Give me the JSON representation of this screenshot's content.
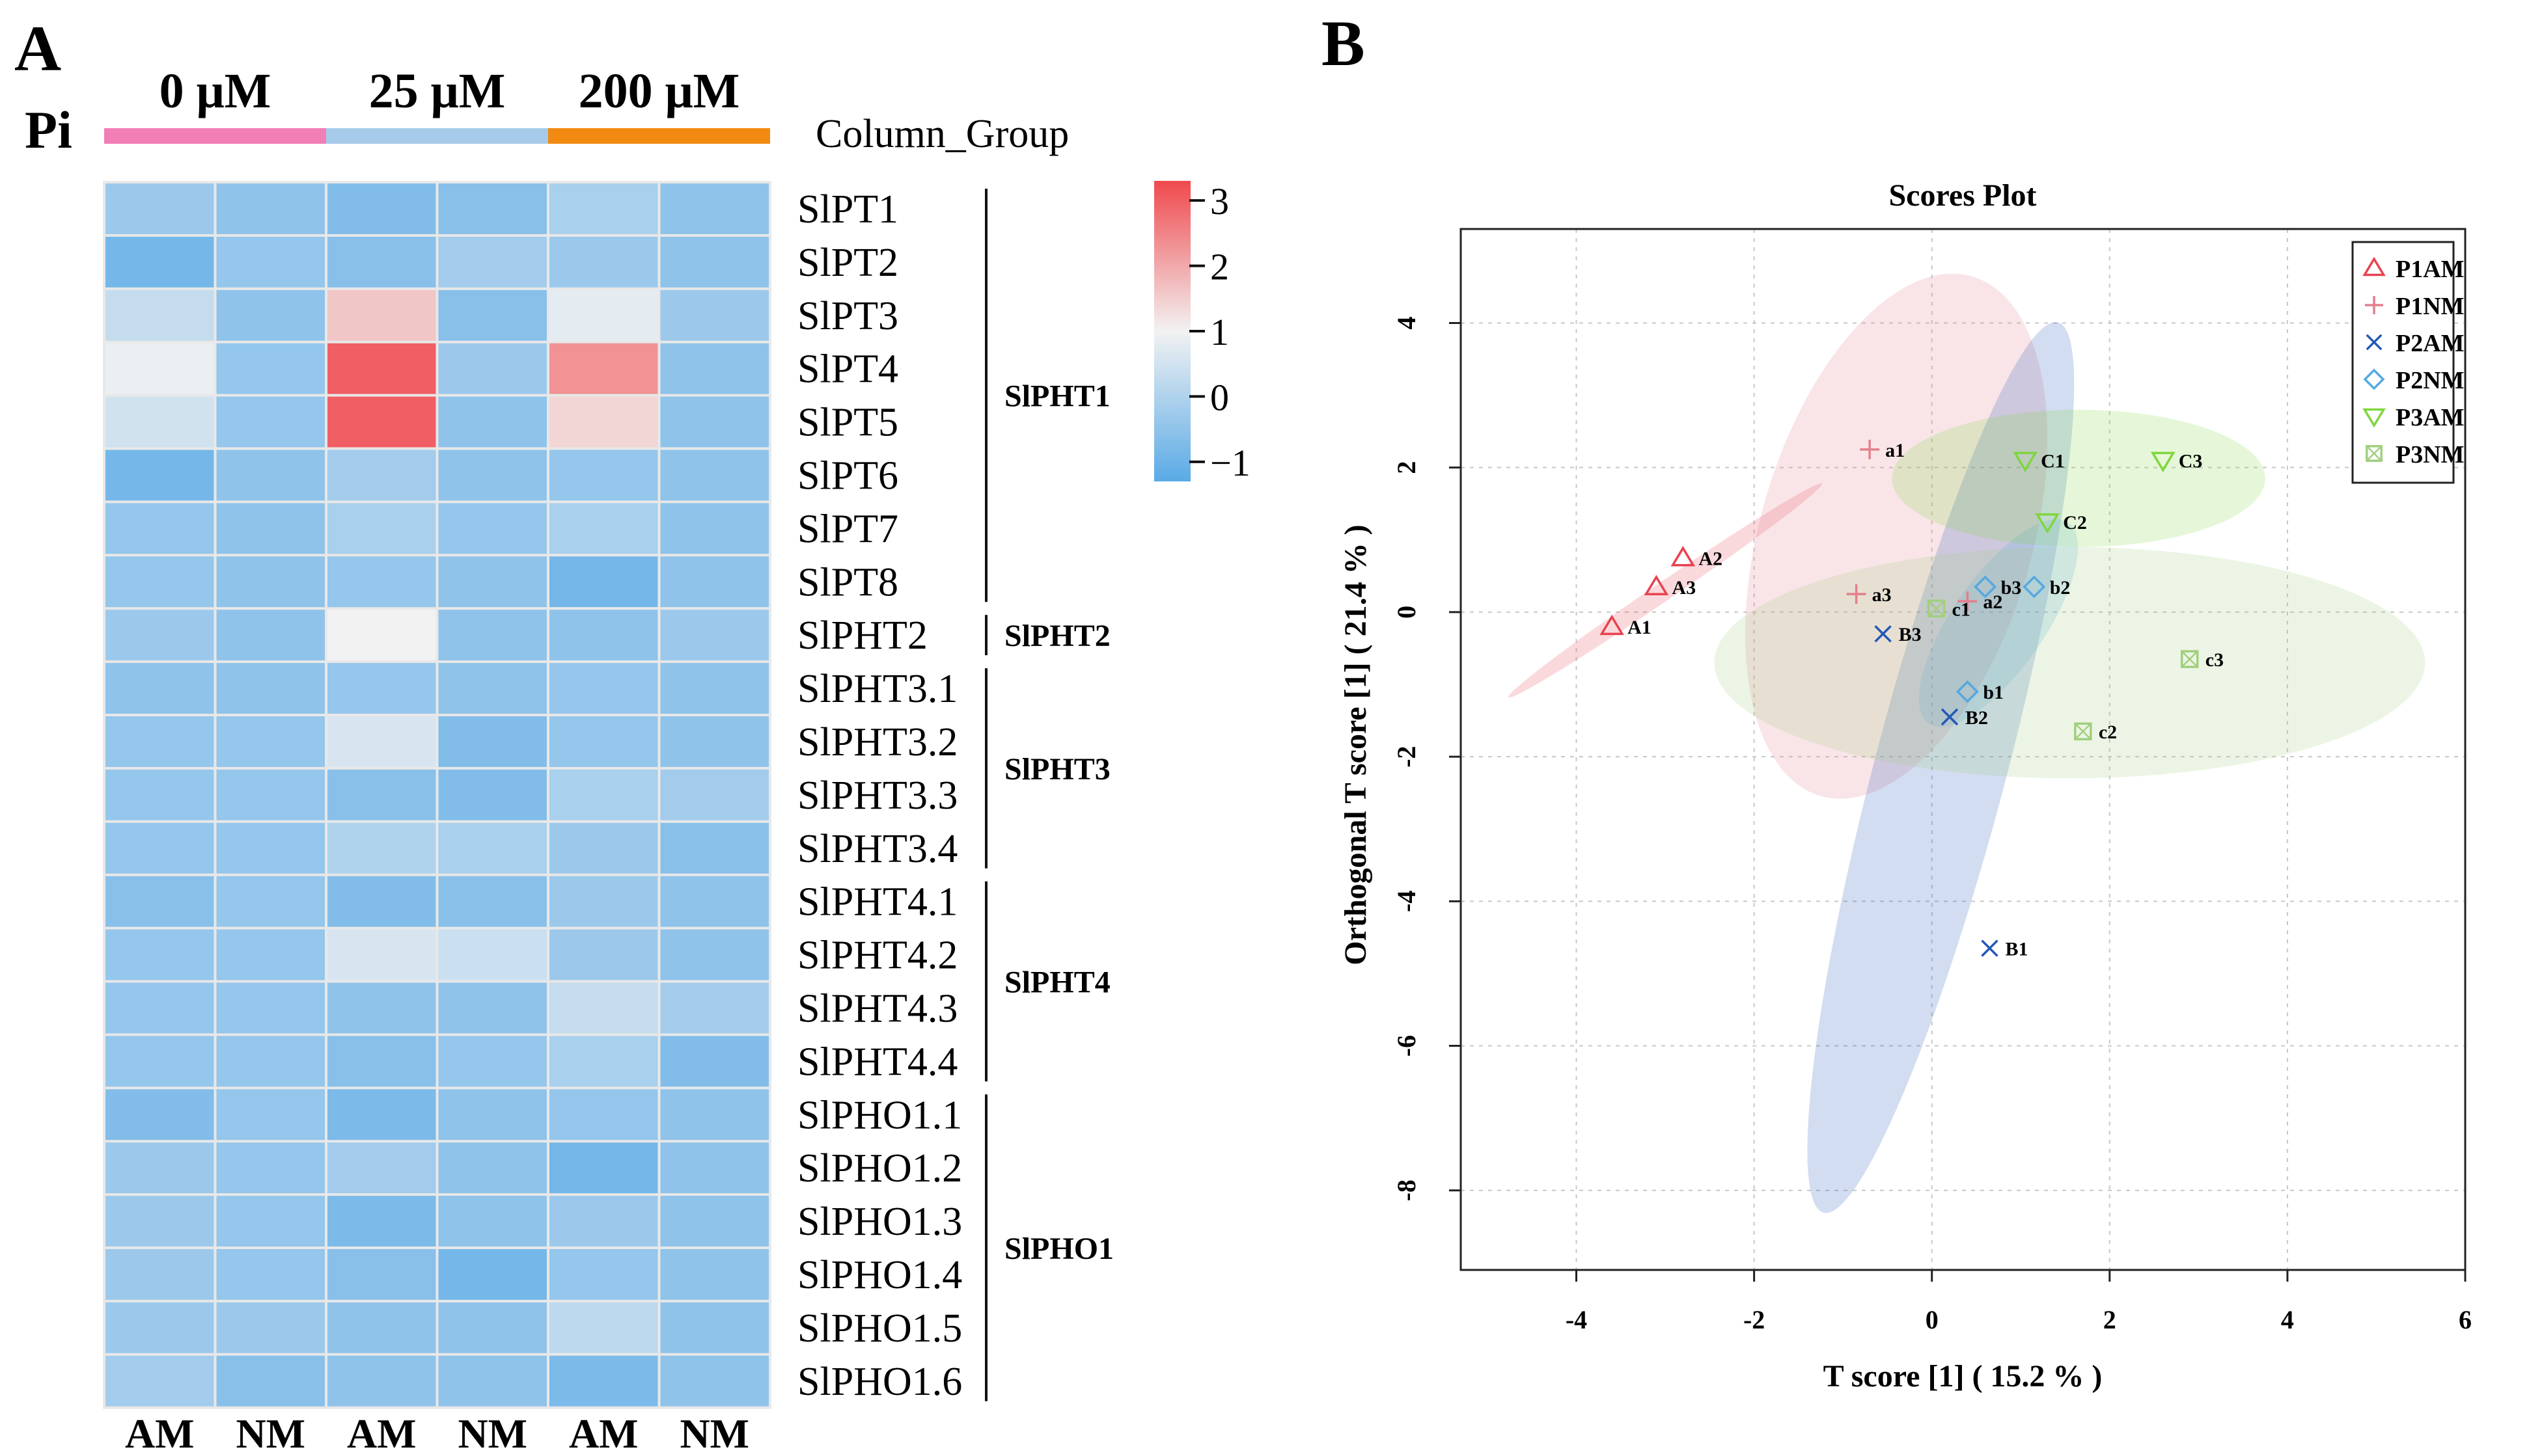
{
  "chart_data": [
    {
      "type": "heatmap",
      "panel_label": "A",
      "row_annotation_label": "Pi",
      "column_group_title": "Column_Group",
      "column_groups": [
        {
          "label": "0 μM",
          "color": "#f27eb6"
        },
        {
          "label": "25 μM",
          "color": "#a6cbea"
        },
        {
          "label": "200 μM",
          "color": "#f28a12"
        }
      ],
      "columns": [
        "AM",
        "NM",
        "AM",
        "NM",
        "AM",
        "NM"
      ],
      "rows": [
        "SlPT1",
        "SlPT2",
        "SlPT3",
        "SlPT4",
        "SlPT5",
        "SlPT6",
        "SlPT7",
        "SlPT8",
        "SlPHT2",
        "SlPHT3.1",
        "SlPHT3.2",
        "SlPHT3.3",
        "SlPHT3.4",
        "SlPHT4.1",
        "SlPHT4.2",
        "SlPHT4.3",
        "SlPHT4.4",
        "SlPHO1.1",
        "SlPHO1.2",
        "SlPHO1.3",
        "SlPHO1.4",
        "SlPHO1.5",
        "SlPHO1.6"
      ],
      "values": [
        [
          -0.3,
          -0.5,
          -0.7,
          -0.6,
          -0.1,
          -0.5
        ],
        [
          -0.9,
          -0.4,
          -0.6,
          -0.2,
          -0.3,
          -0.5
        ],
        [
          0.3,
          -0.5,
          1.6,
          -0.6,
          0.8,
          -0.3
        ],
        [
          0.9,
          -0.4,
          3.0,
          -0.3,
          2.3,
          -0.5
        ],
        [
          0.5,
          -0.4,
          3.0,
          -0.5,
          1.4,
          -0.5
        ],
        [
          -0.9,
          -0.5,
          -0.2,
          -0.5,
          -0.4,
          -0.5
        ],
        [
          -0.4,
          -0.5,
          -0.1,
          -0.4,
          -0.1,
          -0.5
        ],
        [
          -0.4,
          -0.5,
          -0.4,
          -0.5,
          -0.9,
          -0.5
        ],
        [
          -0.3,
          -0.5,
          1.0,
          -0.5,
          -0.5,
          -0.3
        ],
        [
          -0.5,
          -0.5,
          -0.4,
          -0.5,
          -0.4,
          -0.5
        ],
        [
          -0.4,
          -0.4,
          0.6,
          -0.7,
          -0.4,
          -0.5
        ],
        [
          -0.4,
          -0.4,
          -0.6,
          -0.7,
          -0.1,
          -0.2
        ],
        [
          -0.4,
          -0.4,
          0.0,
          -0.1,
          -0.3,
          -0.6
        ],
        [
          -0.6,
          -0.4,
          -0.7,
          -0.6,
          -0.3,
          -0.5
        ],
        [
          -0.4,
          -0.4,
          0.6,
          0.4,
          -0.3,
          -0.5
        ],
        [
          -0.4,
          -0.4,
          -0.5,
          -0.5,
          0.3,
          -0.2
        ],
        [
          -0.4,
          -0.4,
          -0.6,
          -0.4,
          -0.1,
          -0.7
        ],
        [
          -0.7,
          -0.4,
          -0.8,
          -0.5,
          -0.4,
          -0.5
        ],
        [
          -0.3,
          -0.4,
          -0.2,
          -0.5,
          -0.9,
          -0.5
        ],
        [
          -0.3,
          -0.4,
          -0.8,
          -0.5,
          -0.3,
          -0.5
        ],
        [
          -0.3,
          -0.4,
          -0.6,
          -0.9,
          -0.4,
          -0.5
        ],
        [
          -0.3,
          -0.3,
          -0.5,
          -0.5,
          0.2,
          -0.5
        ],
        [
          -0.2,
          -0.6,
          -0.5,
          -0.5,
          -0.8,
          -0.5
        ]
      ],
      "row_groups": [
        {
          "label": "SlPHT1",
          "start": 0,
          "end": 7
        },
        {
          "label": "SlPHT2",
          "start": 8,
          "end": 8
        },
        {
          "label": "SlPHT3",
          "start": 9,
          "end": 12
        },
        {
          "label": "SlPHT4",
          "start": 13,
          "end": 16
        },
        {
          "label": "SlPHO1",
          "start": 17,
          "end": 22
        }
      ],
      "color_scale": {
        "range": [
          -1.3,
          3.3
        ],
        "ticks": [
          3,
          2,
          1,
          0,
          -1
        ],
        "tick_labels": [
          "3",
          "2",
          "1",
          "0",
          "−1"
        ],
        "stops": [
          {
            "value": -1.3,
            "color": "#5aaae6"
          },
          {
            "value": 1.0,
            "color": "#f2f2f2"
          },
          {
            "value": 3.3,
            "color": "#f0494d"
          }
        ]
      }
    },
    {
      "type": "scatter",
      "panel_label": "B",
      "title": "Scores Plot",
      "xlabel": "T score [1] ( 15.2 % )",
      "ylabel": "Orthogonal T score [1] ( 21.4 % )",
      "xlim": [
        -5.3,
        6.0
      ],
      "ylim": [
        -9.1,
        5.3
      ],
      "xticks": [
        -4,
        -2,
        0,
        2,
        4,
        6
      ],
      "yticks": [
        4,
        2,
        0,
        -2,
        -4,
        -6,
        -8
      ],
      "grid": true,
      "legend_position": "top-right",
      "series": [
        {
          "name": "P1AM",
          "marker": "triangle-up",
          "color": "#e8434f",
          "points": [
            {
              "label": "A1",
              "x": -3.6,
              "y": -0.2
            },
            {
              "label": "A2",
              "x": -2.8,
              "y": 0.75
            },
            {
              "label": "A3",
              "x": -3.1,
              "y": 0.35
            }
          ],
          "ellipse": {
            "cx": -3.0,
            "cy": 0.3,
            "rx": 2.3,
            "ry": 0.12,
            "angle": 40
          }
        },
        {
          "name": "P1NM",
          "marker": "plus",
          "color": "#e37f8b",
          "points": [
            {
              "label": "a1",
              "x": -0.7,
              "y": 2.25
            },
            {
              "label": "a2",
              "x": 0.4,
              "y": 0.15
            },
            {
              "label": "a3",
              "x": -0.85,
              "y": 0.25
            }
          ],
          "ellipse": {
            "cx": -0.4,
            "cy": 1.05,
            "rx": 3.7,
            "ry": 1.55,
            "angle": 78
          }
        },
        {
          "name": "P2AM",
          "marker": "cross",
          "color": "#2457b8",
          "points": [
            {
              "label": "B1",
              "x": 0.65,
              "y": -4.65
            },
            {
              "label": "B2",
              "x": 0.2,
              "y": -1.45
            },
            {
              "label": "B3",
              "x": -0.55,
              "y": -0.3
            }
          ],
          "ellipse": {
            "cx": 0.1,
            "cy": -2.15,
            "rx": 6.3,
            "ry": 0.75,
            "angle": 78
          }
        },
        {
          "name": "P2NM",
          "marker": "diamond",
          "color": "#56a9e0",
          "points": [
            {
              "label": "b1",
              "x": 0.4,
              "y": -1.1
            },
            {
              "label": "b2",
              "x": 1.15,
              "y": 0.35
            },
            {
              "label": "b3",
              "x": 0.6,
              "y": 0.35
            }
          ],
          "ellipse": {
            "cx": 0.75,
            "cy": -0.15,
            "rx": 1.6,
            "ry": 0.55,
            "angle": 62
          }
        },
        {
          "name": "P3AM",
          "marker": "triangle-down",
          "color": "#7fd63e",
          "points": [
            {
              "label": "C1",
              "x": 1.05,
              "y": 2.1
            },
            {
              "label": "C2",
              "x": 1.3,
              "y": 1.25
            },
            {
              "label": "C3",
              "x": 2.6,
              "y": 2.1
            }
          ],
          "ellipse": {
            "cx": 1.65,
            "cy": 1.85,
            "rx": 2.1,
            "ry": 0.95,
            "angle": 0
          }
        },
        {
          "name": "P3NM",
          "marker": "boxed-x",
          "color": "#a2cf7e",
          "points": [
            {
              "label": "c1",
              "x": 0.05,
              "y": 0.05
            },
            {
              "label": "c2",
              "x": 1.7,
              "y": -1.65
            },
            {
              "label": "c3",
              "x": 2.9,
              "y": -0.65
            }
          ],
          "ellipse": {
            "cx": 1.55,
            "cy": -0.7,
            "rx": 4.0,
            "ry": 1.6,
            "angle": 0
          }
        }
      ]
    }
  ]
}
